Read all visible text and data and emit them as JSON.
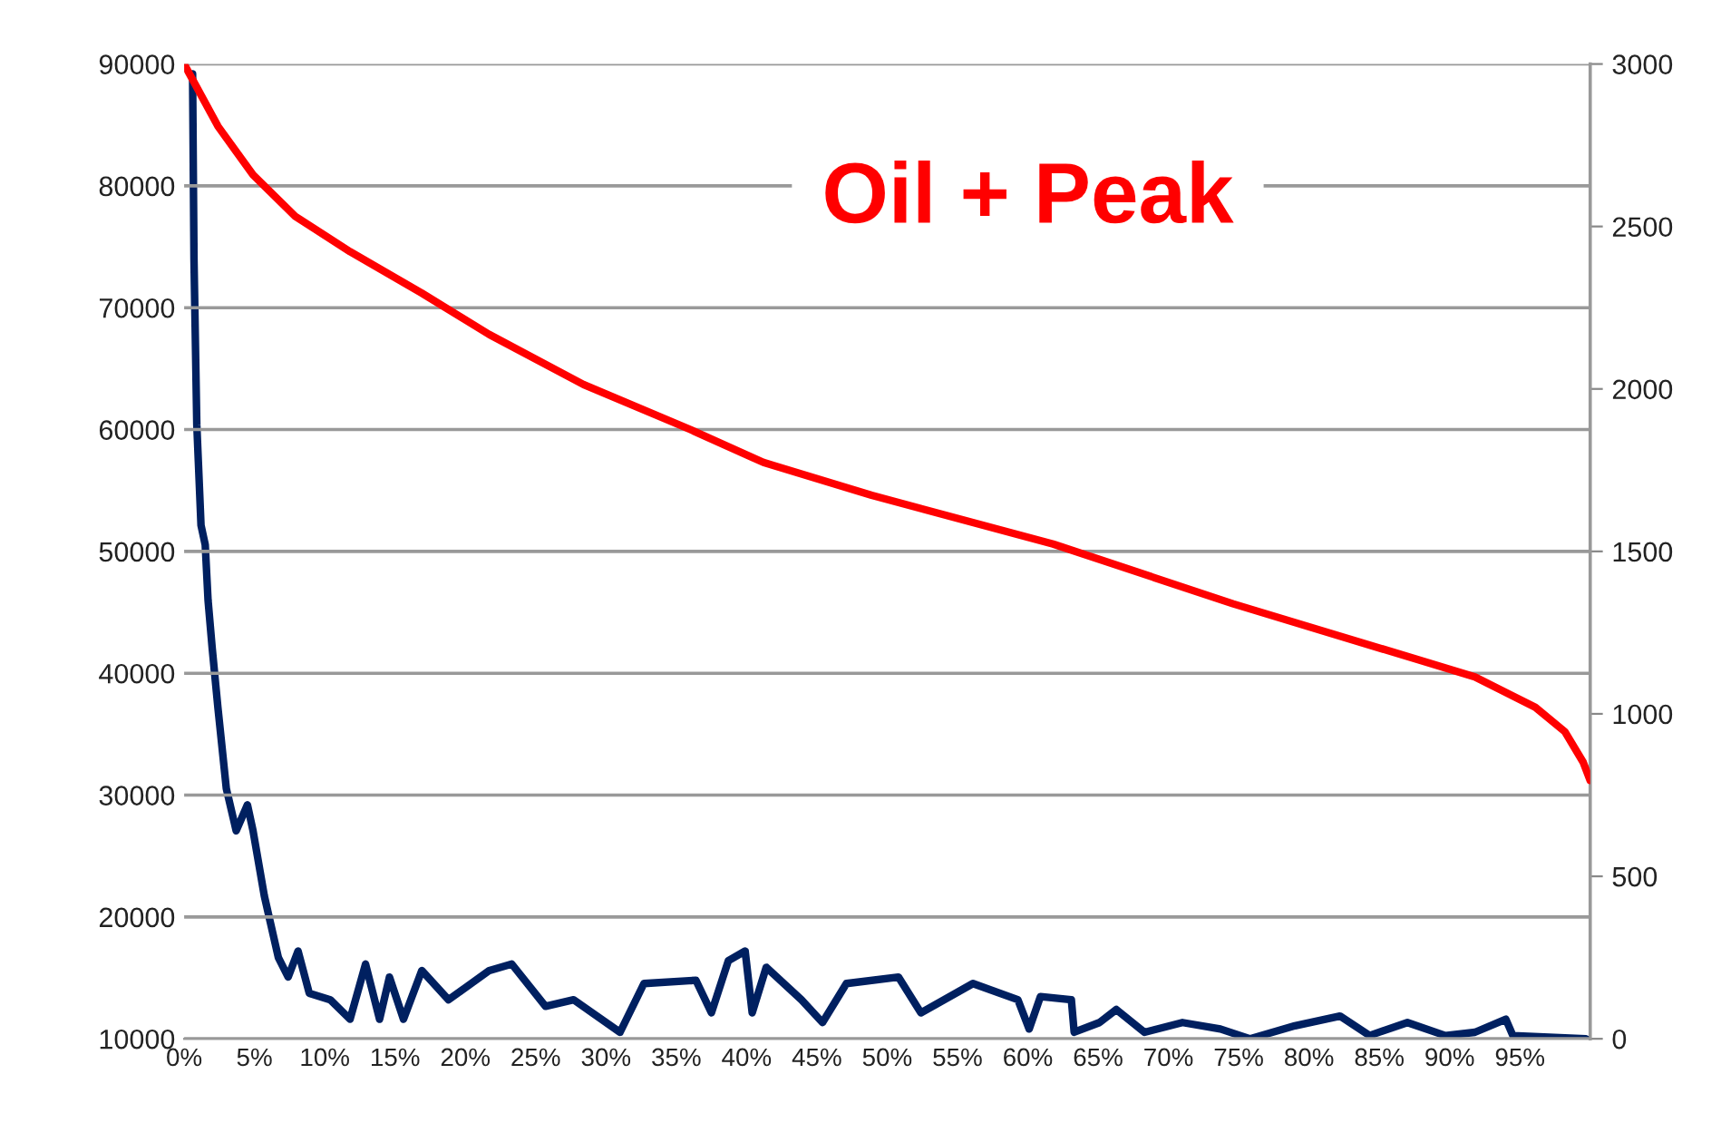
{
  "chart_data": {
    "type": "line",
    "title": "Oil + Peak",
    "xlim": [
      0,
      100
    ],
    "xticks": [
      {
        "value": 0,
        "label": "0%"
      },
      {
        "value": 5,
        "label": "5%"
      },
      {
        "value": 10,
        "label": "10%"
      },
      {
        "value": 15,
        "label": "15%"
      },
      {
        "value": 20,
        "label": "20%"
      },
      {
        "value": 25,
        "label": "25%"
      },
      {
        "value": 30,
        "label": "30%"
      },
      {
        "value": 35,
        "label": "35%"
      },
      {
        "value": 40,
        "label": "40%"
      },
      {
        "value": 45,
        "label": "45%"
      },
      {
        "value": 50,
        "label": "50%"
      },
      {
        "value": 55,
        "label": "55%"
      },
      {
        "value": 60,
        "label": "60%"
      },
      {
        "value": 65,
        "label": "65%"
      },
      {
        "value": 70,
        "label": "70%"
      },
      {
        "value": 75,
        "label": "75%"
      },
      {
        "value": 80,
        "label": "80%"
      },
      {
        "value": 85,
        "label": "85%"
      },
      {
        "value": 90,
        "label": "90%"
      },
      {
        "value": 95,
        "label": "95%"
      }
    ],
    "ylim": [
      10000,
      90000
    ],
    "yticks": [
      10000,
      20000,
      30000,
      40000,
      50000,
      60000,
      70000,
      80000,
      90000
    ],
    "y2lim": [
      0,
      3000
    ],
    "y2ticks": [
      0,
      500,
      1000,
      1500,
      2000,
      2500,
      3000
    ],
    "grid": "y",
    "marker": "none",
    "line_style": "solid",
    "series": [
      {
        "color": "#ff0000",
        "x": [
          0,
          2.4,
          4.9,
          7.9,
          11.8,
          16.9,
          21.7,
          28.4,
          36.0,
          41.2,
          48.9,
          61.8,
          74.6,
          87.5,
          91.8,
          96.1,
          98.2,
          99.5,
          100
        ],
        "values": [
          90000,
          84900,
          80900,
          77500,
          74600,
          71200,
          67800,
          63700,
          60000,
          57300,
          54600,
          50600,
          45700,
          41200,
          39700,
          37200,
          35200,
          32700,
          31200
        ]
      },
      {
        "color": "#002060",
        "axis": "y2",
        "x": [
          0.6,
          0.7,
          0.9,
          1.2,
          1.5,
          1.7,
          2.0,
          2.4,
          3.0,
          3.7,
          4.5,
          4.9,
          5.7,
          6.7,
          7.4,
          8.1,
          8.9,
          10.4,
          11.8,
          12.9,
          13.9,
          14.6,
          15.6,
          16.9,
          18.8,
          21.7,
          23.3,
          25.7,
          27.7,
          31.0,
          32.7,
          36.4,
          37.5,
          38.7,
          39.9,
          40.4,
          41.4,
          43.9,
          45.4,
          47.1,
          50.8,
          52.4,
          56.1,
          59.3,
          60.1,
          60.9,
          63.1,
          63.3,
          65.1,
          66.3,
          68.3,
          71.0,
          73.7,
          75.8,
          79.0,
          82.2,
          84.3,
          87.0,
          89.7,
          91.8,
          94.0,
          94.5,
          99.7
        ],
        "values": [
          2970,
          2400,
          1890,
          1580,
          1520,
          1350,
          1200,
          1020,
          770,
          640,
          720,
          640,
          440,
          250,
          190,
          270,
          140,
          120,
          60,
          230,
          60,
          190,
          60,
          210,
          120,
          210,
          230,
          100,
          120,
          20,
          170,
          180,
          80,
          240,
          270,
          80,
          220,
          120,
          50,
          170,
          190,
          80,
          170,
          120,
          30,
          130,
          120,
          20,
          50,
          90,
          20,
          50,
          30,
          0,
          40,
          70,
          10,
          50,
          10,
          20,
          60,
          10,
          0
        ]
      }
    ]
  }
}
